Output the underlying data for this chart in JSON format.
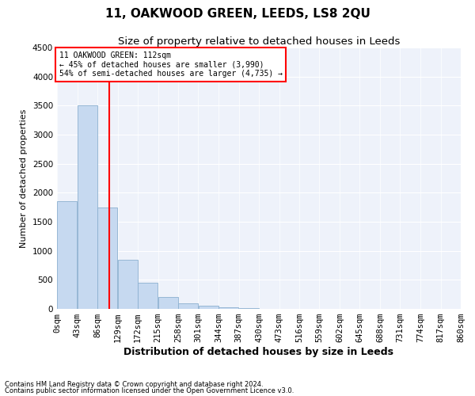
{
  "title": "11, OAKWOOD GREEN, LEEDS, LS8 2QU",
  "subtitle": "Size of property relative to detached houses in Leeds",
  "xlabel": "Distribution of detached houses by size in Leeds",
  "ylabel": "Number of detached properties",
  "footnote1": "Contains HM Land Registry data © Crown copyright and database right 2024.",
  "footnote2": "Contains public sector information licensed under the Open Government Licence v3.0.",
  "annotation_line1": "11 OAKWOOD GREEN: 112sqm",
  "annotation_line2": "← 45% of detached houses are smaller (3,990)",
  "annotation_line3": "54% of semi-detached houses are larger (4,735) →",
  "bar_color": "#c6d9f0",
  "bar_edge_color": "#8cb0d0",
  "grid_color": "#d0d8e8",
  "bg_color": "#eef2fa",
  "redline_x": 112,
  "bin_edges": [
    0,
    43,
    86,
    129,
    172,
    215,
    258,
    301,
    344,
    387,
    430,
    473,
    516,
    559,
    602,
    645,
    688,
    731,
    774,
    817,
    860
  ],
  "bar_heights": [
    1850,
    3500,
    1750,
    850,
    450,
    200,
    100,
    60,
    30,
    15,
    5,
    3,
    2,
    1,
    1,
    1,
    0,
    0,
    0,
    0
  ],
  "ylim": [
    0,
    4500
  ],
  "yticks": [
    0,
    500,
    1000,
    1500,
    2000,
    2500,
    3000,
    3500,
    4000,
    4500
  ],
  "title_fontsize": 11,
  "subtitle_fontsize": 9.5,
  "xlabel_fontsize": 9,
  "ylabel_fontsize": 8,
  "tick_fontsize": 7.5,
  "annot_fontsize": 7,
  "footnote_fontsize": 6
}
